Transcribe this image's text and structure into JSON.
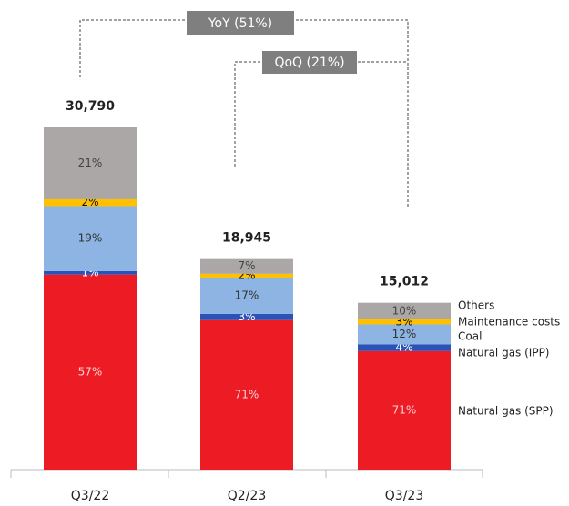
{
  "chart_data": {
    "type": "stacked-bar",
    "categories": [
      "Q3/22",
      "Q2/23",
      "Q3/23"
    ],
    "totals": {
      "values": [
        30790,
        18945,
        15012
      ],
      "value_labels": [
        "30,790",
        "18,945",
        "15,012"
      ]
    },
    "series": [
      {
        "name": "Natural gas (SPP)",
        "color": "#ed1c24",
        "values": [
          57,
          71,
          71
        ],
        "value_labels": [
          "57%",
          "71%",
          "71%"
        ]
      },
      {
        "name": "Natural gas (IPP)",
        "color": "#2a52b8",
        "values": [
          1,
          3,
          4
        ],
        "value_labels": [
          "1%",
          "3%",
          "4%"
        ]
      },
      {
        "name": "Coal",
        "color": "#8db4e2",
        "values": [
          19,
          17,
          12
        ],
        "value_labels": [
          "19%",
          "17%",
          "12%"
        ]
      },
      {
        "name": "Maintenance costs",
        "color": "#ffc000",
        "values": [
          2,
          2,
          3
        ],
        "value_labels": [
          "2%",
          "2%",
          "3%"
        ]
      },
      {
        "name": "Others",
        "color": "#aba7a6",
        "values": [
          21,
          7,
          10
        ],
        "value_labels": [
          "21%",
          "7%",
          "10%"
        ]
      }
    ],
    "annotations": [
      "YoY (51%)",
      "QoQ (21%)"
    ]
  }
}
